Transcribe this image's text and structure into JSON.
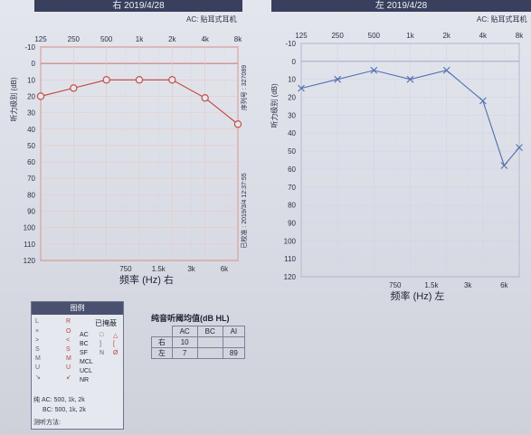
{
  "headers": {
    "right": "右 2019/4/28",
    "left": "左 2019/4/28"
  },
  "ac_type": "AC: 贴耳式耳机",
  "chart_data": [
    {
      "type": "line",
      "ear": "右",
      "x_ticks_top": [
        "125",
        "250",
        "500",
        "1k",
        "2k",
        "4k",
        "8k"
      ],
      "x_ticks_bottom": [
        "750",
        "1.5k",
        "3k",
        "6k"
      ],
      "xlabel": "频率 (Hz) 右",
      "ylabel": "听力级别 (dB)",
      "y_ticks": [
        "-10",
        "0",
        "10",
        "20",
        "30",
        "40",
        "50",
        "60",
        "70",
        "80",
        "90",
        "100",
        "110",
        "120"
      ],
      "ylim": [
        -10,
        120
      ],
      "grid": true,
      "side_text_top": "序列号 : 327089",
      "side_text_bottom": "已校准 : 2019/3/4 12:37:55",
      "series": [
        {
          "color": "#c0433a",
          "marker": "circle",
          "x": [
            "125",
            "250",
            "500",
            "1k",
            "2k",
            "4k",
            "8k"
          ],
          "values": [
            20,
            15,
            10,
            10,
            10,
            21,
            37
          ]
        }
      ]
    },
    {
      "type": "line",
      "ear": "左",
      "x_ticks_top": [
        "125",
        "250",
        "500",
        "1k",
        "2k",
        "4k",
        "8k"
      ],
      "x_ticks_bottom": [
        "750",
        "1.5k",
        "3k",
        "6k"
      ],
      "xlabel": "频率 (Hz) 左",
      "ylabel": "听力级别 (dB)",
      "y_ticks": [
        "-10",
        "0",
        "10",
        "20",
        "30",
        "40",
        "50",
        "60",
        "70",
        "80",
        "90",
        "100",
        "110",
        "120"
      ],
      "ylim": [
        -10,
        120
      ],
      "grid": true,
      "series": [
        {
          "color": "#4f6fae",
          "marker": "cross",
          "x": [
            "125",
            "250",
            "500",
            "1k",
            "2k",
            "4k",
            "6k",
            "8k"
          ],
          "values": [
            15,
            10,
            5,
            10,
            5,
            22,
            58,
            48
          ]
        }
      ]
    }
  ],
  "legend": {
    "title": "图例",
    "col_l": [
      "L",
      "×",
      ">",
      "S",
      "M",
      "U",
      "↘"
    ],
    "col_r": [
      "R",
      "O",
      "<",
      "S",
      "M",
      "U",
      "↙"
    ],
    "col_codes": [
      "AC",
      "BC",
      "SF",
      "MCL",
      "UCL",
      "NR"
    ],
    "masked_label": "已掩蔽",
    "masked_l": [
      "□",
      "]",
      "N"
    ],
    "masked_r": [
      "△",
      "[",
      "Ø"
    ],
    "foot1": "纯  AC: 500, 1k, 2k",
    "foot2": "BC: 500, 1k, 2k",
    "foot3": "测听方法:"
  },
  "average": {
    "title": "纯音听阈均值(dB HL)",
    "cols": [
      "AC",
      "BC",
      "AI"
    ],
    "rows": [
      {
        "ear": "右",
        "ac": "10",
        "bc": "",
        "ai": ""
      },
      {
        "ear": "左",
        "ac": "7",
        "bc": "",
        "ai": "89"
      }
    ]
  }
}
